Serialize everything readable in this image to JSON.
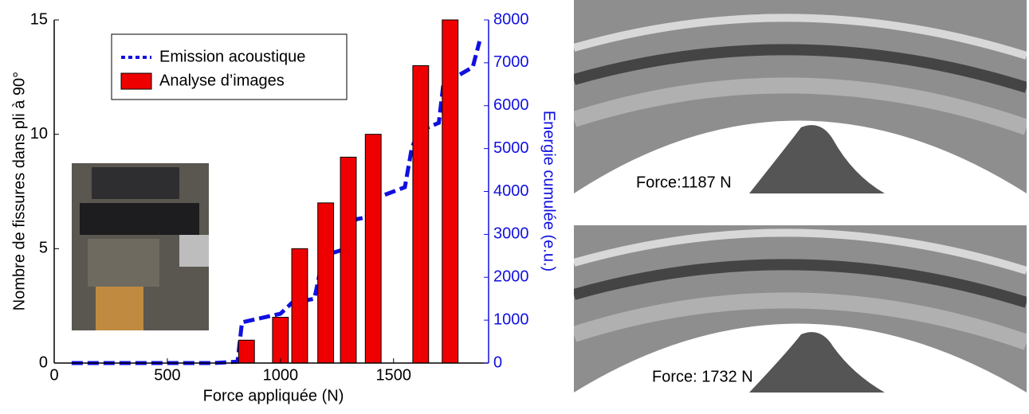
{
  "chart_data": {
    "type": "bar",
    "xlabel": "Force appliquée (N)",
    "ylabel": "Nombre de fissures dans pli à 90°",
    "y2label": "Energie cumulée (e.u.)",
    "xlim": [
      0,
      1920
    ],
    "xticks": [
      0,
      500,
      1000,
      1500
    ],
    "ylim": [
      0,
      15
    ],
    "yticks": [
      0,
      5,
      10,
      15
    ],
    "y2lim": [
      0,
      8000
    ],
    "y2ticks": [
      0,
      1000,
      2000,
      3000,
      4000,
      5000,
      6000,
      7000,
      8000
    ],
    "legend": "upper left",
    "series": [
      {
        "name": "Emission acoustique",
        "type": "line",
        "color": "#1010e0",
        "axis": "y2",
        "x": [
          77,
          700,
          810,
          830,
          1000,
          1050,
          1150,
          1190,
          1280,
          1290,
          1380,
          1400,
          1550,
          1580,
          1610,
          1700,
          1720,
          1850,
          1880
        ],
        "values": [
          0,
          0,
          30,
          950,
          1150,
          1400,
          1500,
          2500,
          2650,
          3300,
          3400,
          3800,
          4100,
          5000,
          5400,
          5600,
          6500,
          6900,
          7500
        ]
      },
      {
        "name": "Analyse d’images",
        "type": "bar",
        "color": "#ee0000",
        "x": [
          850,
          1000,
          1085,
          1200,
          1300,
          1410,
          1620,
          1750
        ],
        "values": [
          1,
          2,
          5,
          7,
          9,
          10,
          13,
          15
        ]
      }
    ],
    "images": [
      {
        "caption": "Force:1187 N"
      },
      {
        "caption": "Force: 1732 N"
      }
    ]
  }
}
